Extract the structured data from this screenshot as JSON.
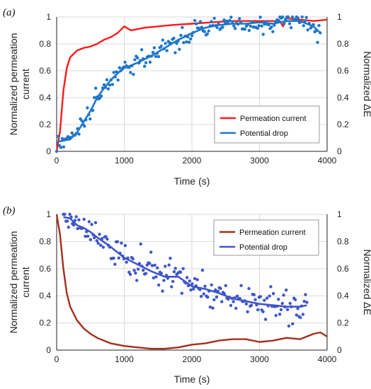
{
  "chart_data": [
    {
      "panel_label": "(a)",
      "type": "line",
      "xlabel": "Time (s)",
      "ylabel_left": "Normalized permeation current",
      "ylabel_right": "Normalized ΔE",
      "xlim": [
        0,
        4000
      ],
      "ylim": [
        0,
        1
      ],
      "x_ticks": [
        "0",
        "1000",
        "2000",
        "3000",
        "4000"
      ],
      "y_ticks": [
        "0",
        "0.2",
        "0.4",
        "0.6",
        "0.8",
        "1"
      ],
      "y2_ticks": [
        "0",
        "0.2",
        "0.4",
        "0.6",
        "0.8",
        "1"
      ],
      "grid": true,
      "legend": "bottom-right",
      "series": [
        {
          "name": "Permeation current",
          "color": "#ff1a1a",
          "style": "line",
          "x": [
            0,
            50,
            100,
            150,
            200,
            300,
            400,
            500,
            600,
            700,
            800,
            900,
            1000,
            1100,
            1200,
            1300,
            1500,
            1700,
            2000,
            2300,
            2600,
            3000,
            3300,
            3350,
            3400,
            3600,
            3800,
            4000
          ],
          "y": [
            0.0,
            0.15,
            0.45,
            0.62,
            0.7,
            0.75,
            0.77,
            0.78,
            0.8,
            0.83,
            0.85,
            0.88,
            0.93,
            0.9,
            0.91,
            0.92,
            0.93,
            0.94,
            0.95,
            0.96,
            0.97,
            0.97,
            0.97,
            0.93,
            0.99,
            0.98,
            0.97,
            0.98
          ]
        },
        {
          "name": "Potential drop",
          "color": "#1f77c8",
          "style": "line+scatter",
          "x": [
            0,
            100,
            200,
            300,
            400,
            500,
            600,
            700,
            800,
            900,
            1000,
            1200,
            1400,
            1600,
            1800,
            2000,
            2200,
            2400,
            2600,
            2800,
            3000,
            3200,
            3400,
            3600,
            3800,
            3900
          ],
          "y": [
            0.07,
            0.08,
            0.09,
            0.14,
            0.22,
            0.3,
            0.4,
            0.47,
            0.53,
            0.58,
            0.62,
            0.66,
            0.71,
            0.77,
            0.83,
            0.88,
            0.92,
            0.94,
            0.95,
            0.95,
            0.96,
            0.95,
            0.97,
            0.97,
            0.93,
            0.88
          ]
        }
      ]
    },
    {
      "panel_label": "(b)",
      "type": "line",
      "xlabel": "Time (s)",
      "ylabel_left": "Normalized permeation current",
      "ylabel_right": "Normalized ΔE",
      "xlim": [
        0,
        4000
      ],
      "ylim": [
        0,
        1
      ],
      "x_ticks": [
        "0",
        "1000",
        "2000",
        "3000",
        "4000"
      ],
      "y_ticks": [
        "0",
        "0.2",
        "0.4",
        "0.6",
        "0.8",
        "1"
      ],
      "y2_ticks": [
        "0",
        "0.2",
        "0.4",
        "0.6",
        "0.8",
        "1"
      ],
      "grid": true,
      "legend": "top-right",
      "series": [
        {
          "name": "Permeation current",
          "color": "#a0301a",
          "style": "line",
          "x": [
            0,
            50,
            100,
            150,
            200,
            300,
            400,
            500,
            600,
            700,
            800,
            900,
            1000,
            1200,
            1400,
            1600,
            1800,
            2000,
            2200,
            2400,
            2600,
            2800,
            3000,
            3200,
            3400,
            3600,
            3800,
            3900,
            4000
          ],
          "y": [
            1.0,
            0.85,
            0.6,
            0.42,
            0.32,
            0.22,
            0.16,
            0.12,
            0.09,
            0.07,
            0.05,
            0.04,
            0.03,
            0.02,
            0.01,
            0.01,
            0.02,
            0.04,
            0.05,
            0.07,
            0.08,
            0.08,
            0.06,
            0.07,
            0.09,
            0.08,
            0.12,
            0.13,
            0.1
          ]
        },
        {
          "name": "Potential drop",
          "color": "#3f56c8",
          "style": "line+scatter",
          "x": [
            100,
            200,
            300,
            400,
            500,
            600,
            800,
            1000,
            1200,
            1400,
            1600,
            1800,
            2000,
            2200,
            2400,
            2600,
            2800,
            3000,
            3200,
            3400,
            3600,
            3700
          ],
          "y": [
            0.98,
            0.97,
            0.92,
            0.9,
            0.87,
            0.83,
            0.76,
            0.68,
            0.63,
            0.58,
            0.54,
            0.54,
            0.47,
            0.45,
            0.42,
            0.38,
            0.36,
            0.34,
            0.33,
            0.32,
            0.32,
            0.33
          ]
        }
      ]
    }
  ]
}
